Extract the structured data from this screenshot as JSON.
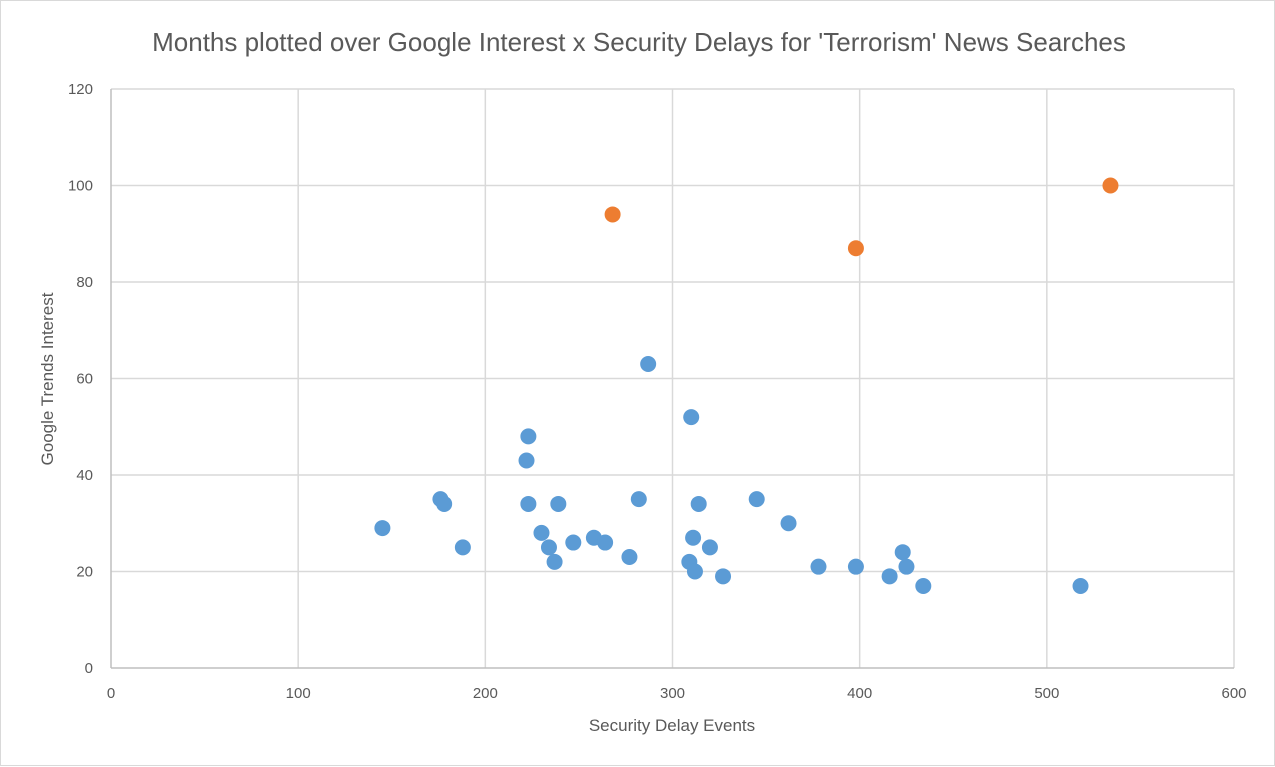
{
  "chart_data": {
    "type": "scatter",
    "title": "Months plotted over Google Interest x Security Delays for 'Terrorism' News Searches",
    "xlabel": "Security Delay Events",
    "ylabel": "Google Trends Interest",
    "xlim": [
      0,
      600
    ],
    "ylim": [
      0,
      120
    ],
    "x_ticks": [
      0,
      100,
      200,
      300,
      400,
      500,
      600
    ],
    "y_ticks": [
      0,
      20,
      40,
      60,
      80,
      100,
      120
    ],
    "grid": true,
    "legend": "none",
    "series": [
      {
        "color": "#5b9bd5",
        "points": [
          [
            145,
            29
          ],
          [
            176,
            35
          ],
          [
            178,
            34
          ],
          [
            188,
            25
          ],
          [
            222,
            43
          ],
          [
            223,
            48
          ],
          [
            223,
            34
          ],
          [
            230,
            28
          ],
          [
            234,
            25
          ],
          [
            237,
            22
          ],
          [
            239,
            34
          ],
          [
            247,
            26
          ],
          [
            258,
            27
          ],
          [
            264,
            26
          ],
          [
            277,
            23
          ],
          [
            282,
            35
          ],
          [
            287,
            63
          ],
          [
            309,
            22
          ],
          [
            310,
            52
          ],
          [
            311,
            27
          ],
          [
            312,
            20
          ],
          [
            314,
            34
          ],
          [
            320,
            25
          ],
          [
            327,
            19
          ],
          [
            345,
            35
          ],
          [
            362,
            30
          ],
          [
            378,
            21
          ],
          [
            398,
            21
          ],
          [
            416,
            19
          ],
          [
            423,
            24
          ],
          [
            425,
            21
          ],
          [
            434,
            17
          ],
          [
            518,
            17
          ]
        ]
      },
      {
        "color": "#ed7d31",
        "points": [
          [
            268,
            94
          ],
          [
            398,
            87
          ],
          [
            534,
            100
          ]
        ]
      }
    ]
  }
}
